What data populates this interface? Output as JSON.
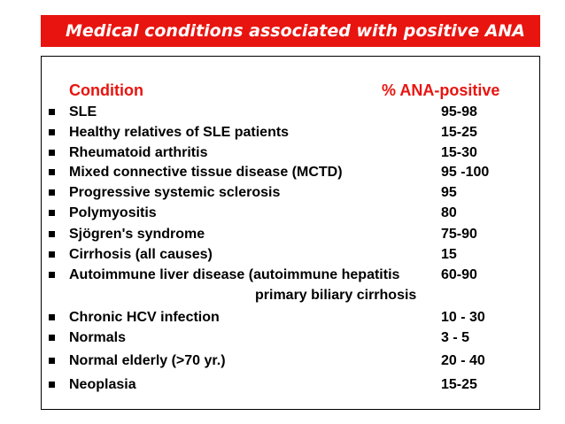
{
  "title": "Medical conditions associated with positive ANA",
  "table": {
    "header_condition": "Condition",
    "header_value": "% ANA-positive",
    "rows": [
      {
        "condition": "SLE",
        "value": "95-98"
      },
      {
        "condition": "Healthy relatives of SLE patients",
        "value": "15-25"
      },
      {
        "condition": "Rheumatoid arthritis",
        "value": "15-30"
      },
      {
        "condition": "Mixed connective tissue disease (MCTD)",
        "value": " 95 -100"
      },
      {
        "condition": "Progressive systemic sclerosis",
        "value": " 95"
      },
      {
        "condition": "Polymyositis",
        "value": " 80"
      },
      {
        "condition": "Sjögren's syndrome",
        "value": "75-90"
      },
      {
        "condition": "Cirrhosis (all causes)",
        "value": "15"
      },
      {
        "condition": "Autoimmune liver disease (autoimmune hepatitis",
        "value": " 60-90"
      },
      {
        "condition": "Chronic HCV infection",
        "value": " 10 - 30"
      },
      {
        "condition": "Normals",
        "value": " 3 - 5"
      },
      {
        "condition": "Normal elderly (>70 yr.)",
        "value": "20 - 40"
      },
      {
        "condition": "Neoplasia",
        "value": "15-25"
      }
    ],
    "continuation": "primary biliary cirrhosis"
  }
}
